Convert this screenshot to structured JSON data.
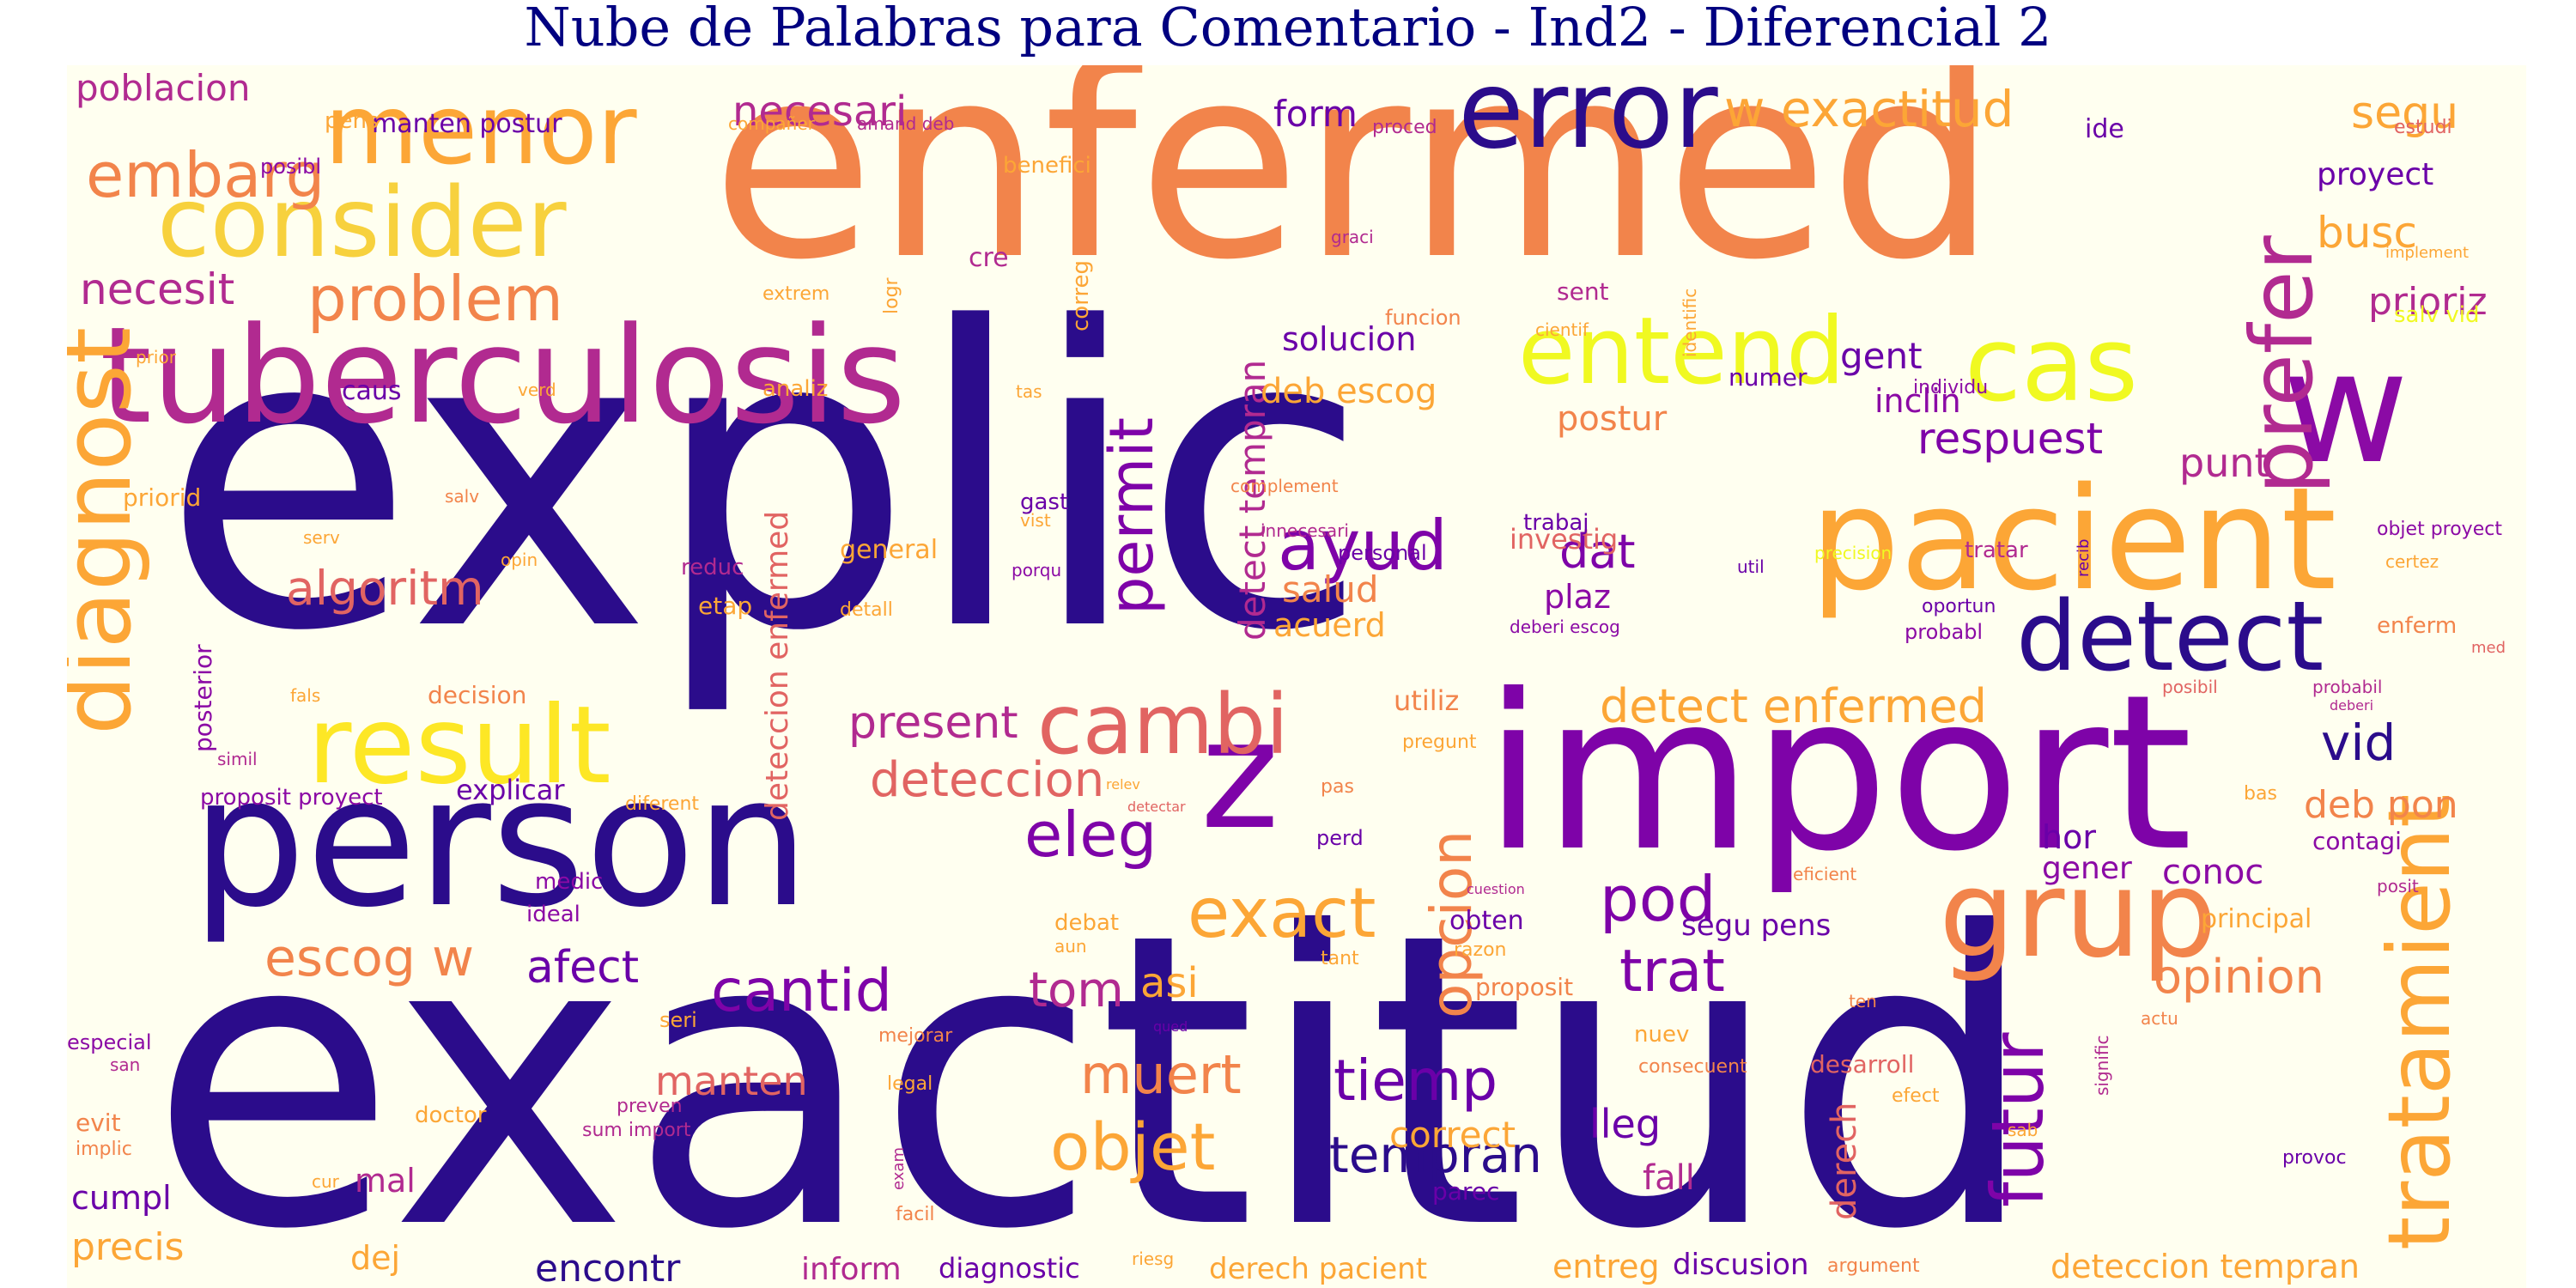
{
  "title": "Nube de Palabras para Comentario - Ind2 - Diferencial 2",
  "colors": {
    "background": "#fffff0",
    "title": "#000080",
    "palette": [
      "#2b0c8b",
      "#6a00a8",
      "#b12a90",
      "#e16462",
      "#f2844b",
      "#fca636",
      "#f0f921"
    ]
  },
  "words": [
    {
      "text": "explic",
      "color": "#2b0c8b"
    },
    {
      "text": "exactitud",
      "color": "#2b0c8b"
    },
    {
      "text": "enfermed",
      "color": "#f2844b"
    },
    {
      "text": "import",
      "color": "#7e03a8"
    },
    {
      "text": "person",
      "color": "#2b0c8b"
    },
    {
      "text": "tuberculosis",
      "color": "#b12a90"
    },
    {
      "text": "pacient",
      "color": "#fca636"
    },
    {
      "text": "z",
      "color": "#7e03a8"
    },
    {
      "text": "w",
      "color": "#8b0aa5"
    },
    {
      "text": "diagnost",
      "color": "#fca636"
    },
    {
      "text": "result",
      "color": "#fde725"
    },
    {
      "text": "consider",
      "color": "#f7d13d"
    },
    {
      "text": "menor",
      "color": "#fca636"
    },
    {
      "text": "error",
      "color": "#2b0c8b"
    },
    {
      "text": "entend",
      "color": "#f0f921"
    },
    {
      "text": "cas",
      "color": "#f0f921"
    },
    {
      "text": "detect",
      "color": "#2b0c8b"
    },
    {
      "text": "cambi",
      "color": "#e16462"
    },
    {
      "text": "grup",
      "color": "#f2844b"
    },
    {
      "text": "prefer",
      "color": "#b12a90"
    },
    {
      "text": "tratamient",
      "color": "#fca636"
    },
    {
      "text": "futur",
      "color": "#7e03a8"
    },
    {
      "text": "problem",
      "color": "#f2844b"
    },
    {
      "text": "embarg",
      "color": "#f2844b"
    },
    {
      "text": "necesit",
      "color": "#b12a90"
    },
    {
      "text": "algoritm",
      "color": "#e16462"
    },
    {
      "text": "ayud",
      "color": "#7e03a8"
    },
    {
      "text": "permit",
      "color": "#7e03a8"
    },
    {
      "text": "eleg",
      "color": "#7e03a8"
    },
    {
      "text": "exact",
      "color": "#fca636"
    },
    {
      "text": "opcion",
      "color": "#f2844b"
    },
    {
      "text": "pod",
      "color": "#7e03a8"
    },
    {
      "text": "tiemp",
      "color": "#6a00a8"
    },
    {
      "text": "objet",
      "color": "#fca636"
    },
    {
      "text": "muert",
      "color": "#f2844b"
    },
    {
      "text": "cantid",
      "color": "#7e03a8"
    },
    {
      "text": "trat",
      "color": "#7e03a8"
    },
    {
      "text": "tempran",
      "color": "#2b0c8b"
    },
    {
      "text": "w exactitud",
      "color": "#fca636"
    },
    {
      "text": "necesari",
      "color": "#b12a90"
    },
    {
      "text": "detect enfermed",
      "color": "#fca636"
    },
    {
      "text": "deteccion",
      "color": "#e16462"
    },
    {
      "text": "present",
      "color": "#b12a90"
    },
    {
      "text": "respuest",
      "color": "#7e03a8"
    },
    {
      "text": "dat",
      "color": "#7e03a8"
    },
    {
      "text": "opinion",
      "color": "#f2844b"
    },
    {
      "text": "segu",
      "color": "#fca636"
    },
    {
      "text": "busc",
      "color": "#fca636"
    },
    {
      "text": "prioriz",
      "color": "#b12a90"
    },
    {
      "text": "vid",
      "color": "#2b0c8b"
    },
    {
      "text": "deb pon",
      "color": "#f2844b"
    },
    {
      "text": "escog w",
      "color": "#f2844b"
    },
    {
      "text": "afect",
      "color": "#6a00a8"
    },
    {
      "text": "tom",
      "color": "#b12a90"
    },
    {
      "text": "asi",
      "color": "#fca636"
    },
    {
      "text": "manten",
      "color": "#e16462"
    },
    {
      "text": "correct",
      "color": "#fca636"
    },
    {
      "text": "lleg",
      "color": "#6a00a8"
    },
    {
      "text": "fall",
      "color": "#b12a90"
    },
    {
      "text": "derech",
      "color": "#e16462"
    },
    {
      "text": "encontr",
      "color": "#2b0c8b"
    },
    {
      "text": "precis",
      "color": "#fca636"
    },
    {
      "text": "cumpl",
      "color": "#6a00a8"
    },
    {
      "text": "mal",
      "color": "#b12a90"
    },
    {
      "text": "dej",
      "color": "#fca636"
    },
    {
      "text": "inform",
      "color": "#b12a90"
    },
    {
      "text": "diagnostic",
      "color": "#6a00a8"
    },
    {
      "text": "derech pacient",
      "color": "#fca636"
    },
    {
      "text": "entreg",
      "color": "#fca636"
    },
    {
      "text": "discusion",
      "color": "#6a00a8"
    },
    {
      "text": "deteccion tempran",
      "color": "#fca636"
    },
    {
      "text": "detect tempran",
      "color": "#b12a90"
    },
    {
      "text": "deteccion enfermed",
      "color": "#e16462"
    },
    {
      "text": "deb escog",
      "color": "#fca636"
    },
    {
      "text": "solucion",
      "color": "#6a00a8"
    },
    {
      "text": "gent",
      "color": "#6a00a8"
    },
    {
      "text": "inclin",
      "color": "#8b0aa5"
    },
    {
      "text": "postur",
      "color": "#f2844b"
    },
    {
      "text": "punt",
      "color": "#b12a90"
    },
    {
      "text": "investig",
      "color": "#e16462"
    },
    {
      "text": "plaz",
      "color": "#8b0aa5"
    },
    {
      "text": "salud",
      "color": "#f2844b"
    },
    {
      "text": "acuerd",
      "color": "#fca636"
    },
    {
      "text": "form",
      "color": "#6a00a8"
    },
    {
      "text": "proyect",
      "color": "#6a00a8"
    },
    {
      "text": "poblacion",
      "color": "#b12a90"
    },
    {
      "text": "explicar",
      "color": "#6a00a8"
    },
    {
      "text": "segu pens",
      "color": "#6a00a8"
    },
    {
      "text": "hor",
      "color": "#6a00a8"
    },
    {
      "text": "gener",
      "color": "#8b0aa5"
    },
    {
      "text": "conoc",
      "color": "#8b0aa5"
    },
    {
      "text": "contagi",
      "color": "#8b0aa5"
    },
    {
      "text": "utiliz",
      "color": "#f2844b"
    },
    {
      "text": "posterior",
      "color": "#8b0aa5"
    },
    {
      "text": "proposit proyect",
      "color": "#8b0aa5"
    },
    {
      "text": "manten postur",
      "color": "#6a00a8"
    },
    {
      "text": "pens",
      "color": "#fca636"
    },
    {
      "text": "compañer",
      "color": "#fca636"
    },
    {
      "text": "amand deb",
      "color": "#b12a90"
    },
    {
      "text": "proced",
      "color": "#b12a90"
    },
    {
      "text": "ide",
      "color": "#6a00a8"
    },
    {
      "text": "estudi",
      "color": "#e16462"
    },
    {
      "text": "benefici",
      "color": "#fca636"
    },
    {
      "text": "posibl",
      "color": "#8b0aa5"
    },
    {
      "text": "graci",
      "color": "#b12a90"
    },
    {
      "text": "implement",
      "color": "#fca636"
    },
    {
      "text": "cre",
      "color": "#b12a90"
    },
    {
      "text": "extrem",
      "color": "#fca636"
    },
    {
      "text": "logr",
      "color": "#fca636"
    },
    {
      "text": "correg",
      "color": "#fca636"
    },
    {
      "text": "funcion",
      "color": "#f2844b"
    },
    {
      "text": "sent",
      "color": "#b12a90"
    },
    {
      "text": "cientif",
      "color": "#fca636"
    },
    {
      "text": "identific",
      "color": "#fca636"
    },
    {
      "text": "numer",
      "color": "#6a00a8"
    },
    {
      "text": "salv vid",
      "color": "#f0f921"
    },
    {
      "text": "caus",
      "color": "#6a00a8"
    },
    {
      "text": "verd",
      "color": "#fca636"
    },
    {
      "text": "analiz",
      "color": "#fca636"
    },
    {
      "text": "tas",
      "color": "#fca636"
    },
    {
      "text": "individu",
      "color": "#8b0aa5"
    },
    {
      "text": "prior",
      "color": "#fca636"
    },
    {
      "text": "priorid",
      "color": "#fca636"
    },
    {
      "text": "salv",
      "color": "#f2844b"
    },
    {
      "text": "complement",
      "color": "#f2844b"
    },
    {
      "text": "gast",
      "color": "#6a00a8"
    },
    {
      "text": "innecesari",
      "color": "#b12a90"
    },
    {
      "text": "objet proyect",
      "color": "#8b0aa5"
    },
    {
      "text": "trabaj",
      "color": "#6a00a8"
    },
    {
      "text": "serv",
      "color": "#fca636"
    },
    {
      "text": "porqu",
      "color": "#8b0aa5"
    },
    {
      "text": "personal",
      "color": "#6a00a8"
    },
    {
      "text": "precision",
      "color": "#f0f921"
    },
    {
      "text": "tratar",
      "color": "#b12a90"
    },
    {
      "text": "recib",
      "color": "#6a00a8"
    },
    {
      "text": "opin",
      "color": "#fca636"
    },
    {
      "text": "general",
      "color": "#fca636"
    },
    {
      "text": "vist",
      "color": "#fca636"
    },
    {
      "text": "util",
      "color": "#6a00a8"
    },
    {
      "text": "certez",
      "color": "#fca636"
    },
    {
      "text": "reduc",
      "color": "#b12a90"
    },
    {
      "text": "etap",
      "color": "#fca636"
    },
    {
      "text": "detall",
      "color": "#fca636"
    },
    {
      "text": "deberi escog",
      "color": "#8b0aa5"
    },
    {
      "text": "oportun",
      "color": "#6a00a8"
    },
    {
      "text": "probabl",
      "color": "#8b0aa5"
    },
    {
      "text": "enferm",
      "color": "#f2844b"
    },
    {
      "text": "med",
      "color": "#e16462"
    },
    {
      "text": "fals",
      "color": "#fca636"
    },
    {
      "text": "decision",
      "color": "#f2844b"
    },
    {
      "text": "posibil",
      "color": "#e16462"
    },
    {
      "text": "probabil",
      "color": "#b12a90"
    },
    {
      "text": "deberi",
      "color": "#b12a90"
    },
    {
      "text": "simil",
      "color": "#b12a90"
    },
    {
      "text": "pregunt",
      "color": "#fca636"
    },
    {
      "text": "pas",
      "color": "#f2844b"
    },
    {
      "text": "relev",
      "color": "#fca636"
    },
    {
      "text": "diferent",
      "color": "#fca636"
    },
    {
      "text": "detectar",
      "color": "#e16462"
    },
    {
      "text": "bas",
      "color": "#fca636"
    },
    {
      "text": "perd",
      "color": "#6a00a8"
    },
    {
      "text": "eficient",
      "color": "#f2844b"
    },
    {
      "text": "medic",
      "color": "#8b0aa5"
    },
    {
      "text": "cuestion",
      "color": "#b12a90"
    },
    {
      "text": "ideal",
      "color": "#8b0aa5"
    },
    {
      "text": "debat",
      "color": "#fca636"
    },
    {
      "text": "obten",
      "color": "#6a00a8"
    },
    {
      "text": "aun",
      "color": "#fca636"
    },
    {
      "text": "razon",
      "color": "#fca636"
    },
    {
      "text": "tant",
      "color": "#fca636"
    },
    {
      "text": "proposit",
      "color": "#f2844b"
    },
    {
      "text": "principal",
      "color": "#fca636"
    },
    {
      "text": "posit",
      "color": "#b12a90"
    },
    {
      "text": "especial",
      "color": "#8b0aa5"
    },
    {
      "text": "san",
      "color": "#b12a90"
    },
    {
      "text": "seri",
      "color": "#fca636"
    },
    {
      "text": "mejorar",
      "color": "#f2844b"
    },
    {
      "text": "qued",
      "color": "#6a00a8"
    },
    {
      "text": "signific",
      "color": "#b12a90"
    },
    {
      "text": "ten",
      "color": "#f2844b"
    },
    {
      "text": "actu",
      "color": "#f2844b"
    },
    {
      "text": "nuev",
      "color": "#fca636"
    },
    {
      "text": "consecuent",
      "color": "#f2844b"
    },
    {
      "text": "desarroll",
      "color": "#e16462"
    },
    {
      "text": "efect",
      "color": "#fca636"
    },
    {
      "text": "legal",
      "color": "#fca636"
    },
    {
      "text": "evit",
      "color": "#f2844b"
    },
    {
      "text": "implic",
      "color": "#f2844b"
    },
    {
      "text": "preven",
      "color": "#b12a90"
    },
    {
      "text": "sum import",
      "color": "#b12a90"
    },
    {
      "text": "doctor",
      "color": "#fca636"
    },
    {
      "text": "parec",
      "color": "#6a00a8"
    },
    {
      "text": "sab",
      "color": "#fca636"
    },
    {
      "text": "provoc",
      "color": "#6a00a8"
    },
    {
      "text": "cur",
      "color": "#fca636"
    },
    {
      "text": "exam",
      "color": "#b12a90"
    },
    {
      "text": "facil",
      "color": "#f2844b"
    },
    {
      "text": "riesg",
      "color": "#fca636"
    },
    {
      "text": "argument",
      "color": "#f2844b"
    }
  ]
}
